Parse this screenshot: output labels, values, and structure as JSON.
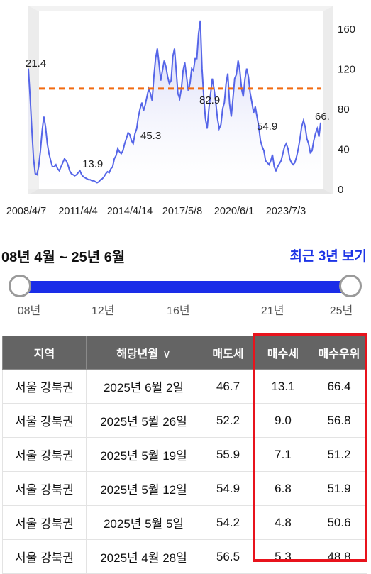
{
  "chart_data": {
    "type": "area",
    "x_tick_labels": [
      "2008/4/7",
      "2011/4/4",
      "2014/4/14",
      "2017/5/8",
      "2020/6/1",
      "2023/7/3"
    ],
    "y_ticks": [
      0,
      40,
      80,
      120,
      160
    ],
    "ylim": [
      0,
      180
    ],
    "reference_line": 100,
    "annotations": [
      "21.4",
      "13.9",
      "45.3",
      "82.9",
      "54.9",
      "66."
    ],
    "series": [
      {
        "values": [
          120,
          92,
          60,
          30,
          15,
          14,
          22,
          38,
          58,
          72,
          62,
          45,
          35,
          28,
          22,
          22,
          24,
          20,
          18,
          22,
          26,
          30,
          28,
          24,
          18,
          15,
          14,
          13,
          14,
          16,
          18,
          14,
          12,
          11,
          10,
          9,
          9,
          8,
          8,
          7,
          6,
          7,
          9,
          10,
          12,
          15,
          17,
          16,
          20,
          22,
          30,
          33,
          40,
          37,
          35,
          38,
          45,
          50,
          56,
          54,
          48,
          45,
          55,
          60,
          72,
          80,
          86,
          78,
          84,
          92,
          100,
          95,
          88,
          112,
          130,
          140,
          125,
          108,
          118,
          128,
          122,
          112,
          105,
          108,
          132,
          140,
          118,
          95,
          90,
          100,
          118,
          126,
          112,
          98,
          105,
          120,
          118,
          130,
          130,
          155,
          168,
          120,
          92,
          70,
          60,
          80,
          95,
          110,
          100,
          86,
          70,
          60,
          64,
          80,
          86,
          105,
          115,
          85,
          72,
          90,
          110,
          114,
          128,
          118,
          100,
          92,
          110,
          120,
          112,
          96,
          86,
          76,
          82,
          72,
          62,
          48,
          42,
          38,
          28,
          26,
          24,
          28,
          34,
          22,
          18,
          22,
          25,
          28,
          35,
          42,
          45,
          40,
          30,
          26,
          24,
          26,
          32,
          40,
          50,
          62,
          68,
          62,
          50,
          45,
          36,
          38,
          48,
          55,
          60,
          52,
          66
        ]
      }
    ]
  },
  "range": {
    "text": "08년 4월 ~ 25년 6월",
    "recent_label": "최근 3년 보기"
  },
  "slider": {
    "start_fraction": 0.0,
    "end_fraction": 1.0,
    "ticks": [
      [
        "08년",
        0.0
      ],
      [
        "12년",
        0.237
      ],
      [
        "16년",
        0.478
      ],
      [
        "21년",
        0.78
      ],
      [
        "25년",
        1.0
      ]
    ]
  },
  "table": {
    "columns": [
      "지역",
      "해당년월",
      "매도세",
      "매수세",
      "매수우위"
    ],
    "sort_caret": "∨",
    "rows": [
      [
        "서울 강북권",
        "2025년 6월 2일",
        "46.7",
        "13.1",
        "66.4"
      ],
      [
        "서울 강북권",
        "2025년 5월 26일",
        "52.2",
        "9.0",
        "56.8"
      ],
      [
        "서울 강북권",
        "2025년 5월 19일",
        "55.9",
        "7.1",
        "51.2"
      ],
      [
        "서울 강북권",
        "2025년 5월 12일",
        "54.9",
        "6.8",
        "51.9"
      ],
      [
        "서울 강북권",
        "2025년 5월 5일",
        "54.2",
        "4.8",
        "50.6"
      ],
      [
        "서울 강북권",
        "2025년 4월 28일",
        "56.5",
        "5.3",
        "48.8"
      ]
    ]
  },
  "colors": {
    "line": "#5565e8",
    "reference": "#f26a10",
    "slider": "#1a2de8",
    "highlight": "#e8131c",
    "header_bg": "#646464"
  }
}
